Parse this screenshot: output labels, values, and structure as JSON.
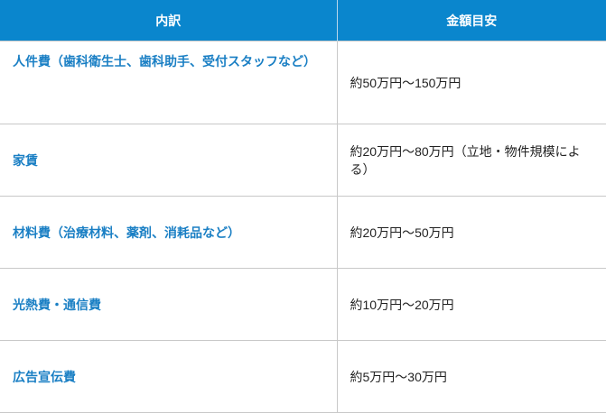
{
  "table": {
    "headers": [
      "内訳",
      "金額目安"
    ],
    "rows": [
      {
        "item": "人件費（歯科衛生士、歯科助手、受付スタッフなど）",
        "amount": "約50万円〜150万円"
      },
      {
        "item": "家賃",
        "amount": "約20万円〜80万円（立地・物件規模による）"
      },
      {
        "item": "材料費（治療材料、薬剤、消耗品など）",
        "amount": "約20万円〜50万円"
      },
      {
        "item": "光熱費・通信費",
        "amount": "約10万円〜20万円"
      },
      {
        "item": "広告宣伝費",
        "amount": "約5万円〜30万円"
      }
    ]
  },
  "colors": {
    "header_bg": "#0a86cd",
    "item_text": "#1a7fc4"
  }
}
